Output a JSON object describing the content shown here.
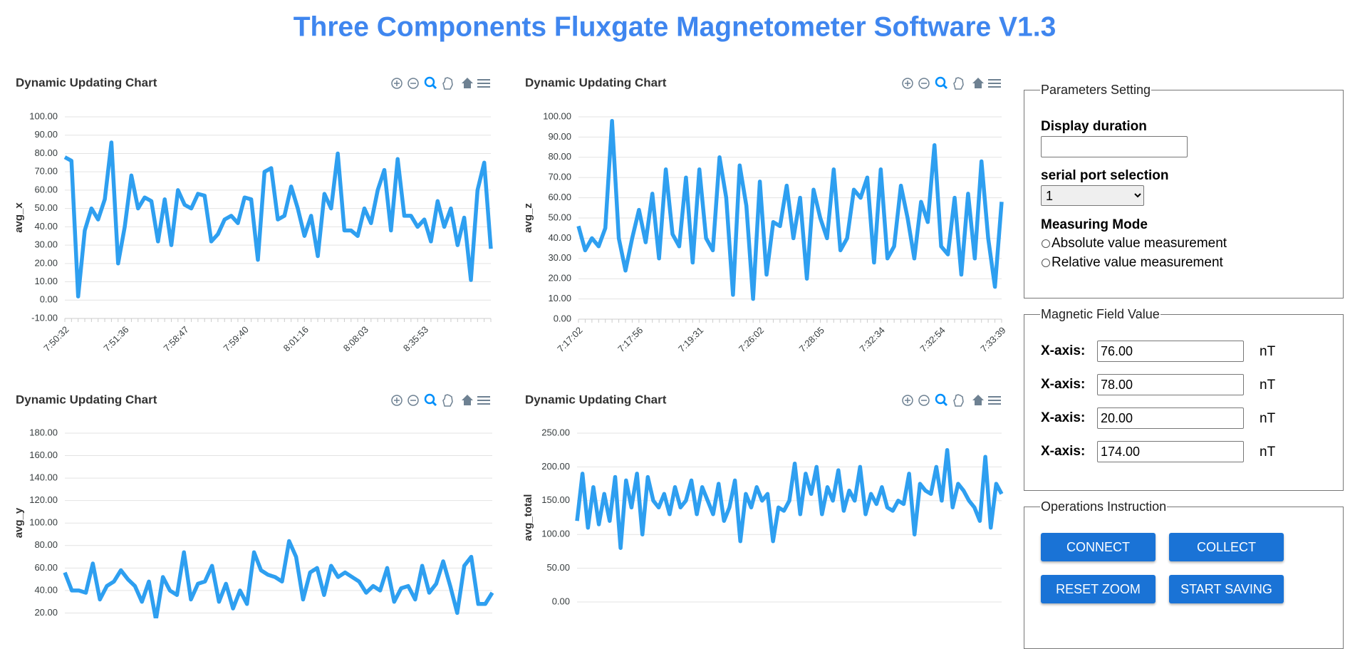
{
  "header": {
    "title": "Three Components Fluxgate Magnetometer Software V1.3"
  },
  "chart_data": [
    {
      "type": "line",
      "title": "Dynamic Updating Chart",
      "y_label": "avg_x",
      "color": "#2e9ff0",
      "categories": [
        "7:50:32",
        null,
        null,
        null,
        null,
        null,
        null,
        null,
        null,
        "7:51:36",
        null,
        null,
        null,
        null,
        null,
        null,
        null,
        null,
        "7:58:47",
        null,
        null,
        null,
        null,
        null,
        null,
        null,
        null,
        "7:59:40",
        null,
        null,
        null,
        null,
        null,
        null,
        null,
        null,
        "8:01:16",
        null,
        null,
        null,
        null,
        null,
        null,
        null,
        null,
        "8:08:03",
        null,
        null,
        null,
        null,
        null,
        null,
        null,
        null,
        "8:35:53",
        null,
        null,
        null,
        null,
        null,
        null,
        null,
        null,
        null,
        null
      ],
      "values": [
        78,
        76,
        2,
        38,
        50,
        44,
        55,
        86,
        20,
        40,
        68,
        50,
        56,
        54,
        32,
        55,
        30,
        60,
        52,
        50,
        58,
        57,
        32,
        36,
        44,
        46,
        42,
        56,
        55,
        22,
        70,
        72,
        44,
        46,
        62,
        50,
        35,
        46,
        24,
        58,
        50,
        80,
        38,
        38,
        35,
        50,
        42,
        60,
        71,
        38,
        77,
        46,
        46,
        40,
        44,
        32,
        54,
        40,
        50,
        30,
        45,
        11,
        60,
        75,
        28
      ],
      "ylim": [
        -10,
        100
      ],
      "yticks": [
        {
          "value": -10,
          "label": "-10.00"
        },
        {
          "value": 0,
          "label": "0.00"
        },
        {
          "value": 10,
          "label": "10.00"
        },
        {
          "value": 20,
          "label": "20.00"
        },
        {
          "value": 30,
          "label": "30.00"
        },
        {
          "value": 40,
          "label": "40.00"
        },
        {
          "value": 50,
          "label": "50.00"
        },
        {
          "value": 60,
          "label": "60.00"
        },
        {
          "value": 70,
          "label": "70.00"
        },
        {
          "value": 80,
          "label": "80.00"
        },
        {
          "value": 90,
          "label": "90.00"
        },
        {
          "value": 100,
          "label": "100.00"
        }
      ],
      "grid": true
    },
    {
      "type": "line",
      "title": "Dynamic Updating Chart",
      "y_label": "avg_z",
      "color": "#2e9ff0",
      "categories": [
        "7:17:02",
        null,
        null,
        null,
        null,
        null,
        null,
        null,
        null,
        "7:17:56",
        null,
        null,
        null,
        null,
        null,
        null,
        null,
        null,
        "7:19:31",
        null,
        null,
        null,
        null,
        null,
        null,
        null,
        null,
        "7:26:02",
        null,
        null,
        null,
        null,
        null,
        null,
        null,
        null,
        "7:28:05",
        null,
        null,
        null,
        null,
        null,
        null,
        null,
        null,
        "7:32:34",
        null,
        null,
        null,
        null,
        null,
        null,
        null,
        null,
        "7:32:54",
        null,
        null,
        null,
        null,
        null,
        null,
        null,
        null,
        "7:33:39"
      ],
      "values": [
        46,
        34,
        40,
        36,
        45,
        98,
        40,
        24,
        40,
        54,
        38,
        62,
        30,
        74,
        42,
        36,
        70,
        28,
        74,
        40,
        34,
        80,
        60,
        12,
        76,
        56,
        10,
        68,
        22,
        48,
        46,
        66,
        40,
        60,
        20,
        64,
        50,
        40,
        74,
        34,
        40,
        64,
        60,
        70,
        28,
        74,
        30,
        36,
        66,
        50,
        30,
        58,
        48,
        86,
        36,
        32,
        60,
        22,
        62,
        30,
        78,
        40,
        16,
        58
      ],
      "ylim": [
        0,
        100
      ],
      "yticks": [
        {
          "value": 0,
          "label": "0.00"
        },
        {
          "value": 10,
          "label": "10.00"
        },
        {
          "value": 20,
          "label": "20.00"
        },
        {
          "value": 30,
          "label": "30.00"
        },
        {
          "value": 40,
          "label": "40.00"
        },
        {
          "value": 50,
          "label": "50.00"
        },
        {
          "value": 60,
          "label": "60.00"
        },
        {
          "value": 70,
          "label": "70.00"
        },
        {
          "value": 80,
          "label": "80.00"
        },
        {
          "value": 90,
          "label": "90.00"
        },
        {
          "value": 100,
          "label": "100.00"
        }
      ],
      "grid": true
    },
    {
      "type": "line",
      "title": "Dynamic Updating Chart",
      "y_label": "avg_y",
      "color": "#2e9ff0",
      "values": [
        56,
        40,
        40,
        38,
        64,
        32,
        44,
        48,
        58,
        50,
        44,
        30,
        48,
        14,
        52,
        40,
        36,
        74,
        32,
        46,
        48,
        62,
        30,
        46,
        24,
        40,
        28,
        74,
        58,
        54,
        52,
        48,
        84,
        70,
        32,
        56,
        60,
        36,
        62,
        52,
        56,
        52,
        48,
        38,
        44,
        40,
        60,
        30,
        42,
        44,
        32,
        62,
        38,
        46,
        66,
        44,
        20,
        62,
        70,
        28,
        28,
        38
      ],
      "ylim": [
        0,
        180
      ],
      "yticks": [
        {
          "value": 20,
          "label": "20.00"
        },
        {
          "value": 40,
          "label": "40.00"
        },
        {
          "value": 60,
          "label": "60.00"
        },
        {
          "value": 80,
          "label": "80.00"
        },
        {
          "value": 100,
          "label": "100.00"
        },
        {
          "value": 120,
          "label": "120.00"
        },
        {
          "value": 140,
          "label": "140.00"
        },
        {
          "value": 160,
          "label": "160.00"
        },
        {
          "value": 180,
          "label": "180.00"
        }
      ],
      "grid": true
    },
    {
      "type": "line",
      "title": "Dynamic Updating Chart",
      "y_label": "avg_total",
      "color": "#2e9ff0",
      "values": [
        120,
        190,
        110,
        170,
        115,
        160,
        120,
        185,
        80,
        180,
        140,
        190,
        100,
        185,
        150,
        140,
        160,
        130,
        170,
        140,
        150,
        180,
        130,
        170,
        150,
        130,
        175,
        120,
        140,
        180,
        90,
        160,
        140,
        170,
        150,
        160,
        90,
        140,
        135,
        150,
        205,
        130,
        190,
        160,
        200,
        130,
        170,
        150,
        195,
        135,
        165,
        150,
        200,
        130,
        160,
        145,
        170,
        140,
        135,
        150,
        145,
        190,
        100,
        175,
        165,
        160,
        200,
        150,
        225,
        140,
        175,
        165,
        150,
        140,
        120,
        215,
        110,
        175,
        160
      ],
      "ylim": [
        0,
        250
      ],
      "yticks": [
        {
          "value": 0,
          "label": "0.00"
        },
        {
          "value": 50,
          "label": "50.00"
        },
        {
          "value": 100,
          "label": "100.00"
        },
        {
          "value": 150,
          "label": "150.00"
        },
        {
          "value": 200,
          "label": "200.00"
        },
        {
          "value": 250,
          "label": "250.00"
        }
      ],
      "grid": true
    }
  ],
  "parameters": {
    "legend": "Parameters Setting",
    "duration_label": "Display duration",
    "serial_label": "serial port selection",
    "serial_value": "1",
    "mode_label": "Measuring Mode",
    "modes": [
      "Absolute value measurement",
      "Relative value measurement"
    ]
  },
  "field": {
    "legend": "Magnetic Field Value",
    "rows": [
      {
        "label": "X-axis:",
        "value": "76.00",
        "unit": "nT"
      },
      {
        "label": "X-axis:",
        "value": "78.00",
        "unit": "nT"
      },
      {
        "label": "X-axis:",
        "value": "20.00",
        "unit": "nT"
      },
      {
        "label": "X-axis:",
        "value": "174.00",
        "unit": "nT"
      }
    ]
  },
  "operations": {
    "legend": "Operations Instruction",
    "buttons": [
      "CONNECT",
      "COLLECT",
      "RESET ZOOM",
      "START SAVING"
    ]
  }
}
